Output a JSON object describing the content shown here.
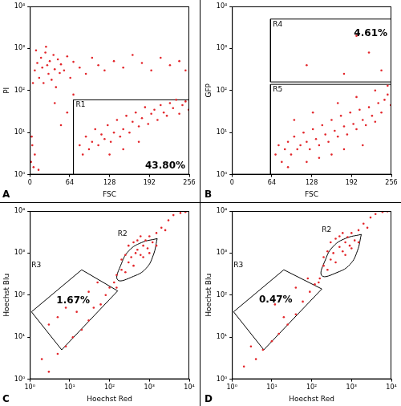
{
  "chart_data": [
    {
      "type": "scatter",
      "panel": "A",
      "x_label": "FSC",
      "y_label": "PI",
      "color": "#e3262b",
      "grid": false,
      "log": "y",
      "xlim": [
        0,
        256
      ],
      "xticks": [
        0,
        64,
        128,
        192,
        256
      ],
      "ylim": [
        1,
        10000
      ],
      "yticks": [
        {
          "value": 1,
          "label": "10⁰"
        },
        {
          "value": 10,
          "label": "10¹"
        },
        {
          "value": 100,
          "label": "10²"
        },
        {
          "value": 1000,
          "label": "10³"
        },
        {
          "value": 10000,
          "label": "10⁴"
        }
      ],
      "x": [
        8,
        12,
        15,
        18,
        20,
        22,
        25,
        28,
        30,
        32,
        35,
        38,
        40,
        42,
        45,
        48,
        50,
        55,
        60,
        65,
        70,
        80,
        90,
        100,
        110,
        120,
        135,
        150,
        165,
        180,
        195,
        210,
        225,
        240,
        250,
        5,
        10,
        26,
        80,
        85,
        90,
        95,
        100,
        105,
        110,
        115,
        120,
        125,
        130,
        135,
        140,
        145,
        150,
        155,
        160,
        165,
        170,
        175,
        180,
        185,
        190,
        195,
        200,
        205,
        210,
        215,
        220,
        225,
        230,
        235,
        240,
        245,
        250,
        255,
        128,
        150,
        175,
        2,
        4,
        6,
        3,
        8,
        14,
        60,
        50,
        70,
        40
      ],
      "values": [
        300,
        450,
        200,
        600,
        350,
        150,
        800,
        400,
        250,
        500,
        180,
        700,
        320,
        120,
        550,
        260,
        420,
        300,
        650,
        200,
        480,
        350,
        250,
        600,
        400,
        300,
        500,
        350,
        700,
        450,
        300,
        600,
        400,
        500,
        300,
        150,
        900,
        1100,
        5,
        3,
        8,
        4,
        6,
        12,
        5,
        9,
        7,
        15,
        6,
        10,
        20,
        8,
        12,
        25,
        10,
        18,
        30,
        14,
        22,
        40,
        16,
        28,
        35,
        20,
        45,
        30,
        25,
        50,
        38,
        60,
        28,
        45,
        55,
        35,
        3,
        4,
        6,
        2,
        5,
        1.5,
        8,
        3,
        1.3,
        30,
        15,
        80,
        50
      ],
      "regions": [
        {
          "name": "R1",
          "shape": "rectangle",
          "x": [
            70,
            256
          ],
          "y": [
            1,
            60
          ],
          "value": 43.8,
          "value_label": "43.80%"
        }
      ]
    },
    {
      "type": "scatter",
      "panel": "B",
      "x_label": "FSC",
      "y_label": "GFP",
      "color": "#e3262b",
      "grid": false,
      "log": "y",
      "xlim": [
        0,
        256
      ],
      "xticks": [
        0,
        64,
        128,
        192,
        256
      ],
      "ylim": [
        1,
        10000
      ],
      "yticks": [
        {
          "value": 1,
          "label": "10⁰"
        },
        {
          "value": 10,
          "label": "10¹"
        },
        {
          "value": 100,
          "label": "10²"
        },
        {
          "value": 1000,
          "label": "10³"
        },
        {
          "value": 10000,
          "label": "10⁴"
        }
      ],
      "x": [
        70,
        75,
        80,
        85,
        90,
        95,
        100,
        105,
        110,
        115,
        120,
        125,
        130,
        135,
        140,
        145,
        150,
        155,
        160,
        165,
        170,
        175,
        180,
        185,
        190,
        195,
        200,
        205,
        210,
        215,
        220,
        225,
        230,
        235,
        240,
        245,
        250,
        255,
        100,
        130,
        170,
        200,
        230,
        250,
        120,
        140,
        90,
        160,
        180,
        210,
        120,
        180,
        220,
        240,
        200
      ],
      "values": [
        3,
        5,
        2,
        4,
        6,
        3,
        8,
        4,
        5,
        10,
        6,
        4,
        12,
        7,
        5,
        15,
        9,
        6,
        20,
        11,
        8,
        25,
        14,
        9,
        30,
        16,
        12,
        35,
        20,
        15,
        40,
        25,
        18,
        50,
        30,
        60,
        80,
        45,
        20,
        30,
        50,
        70,
        100,
        130,
        2,
        2.5,
        1.5,
        3,
        4,
        5,
        400,
        250,
        800,
        300,
        2000
      ],
      "regions": [
        {
          "name": "R4",
          "shape": "rectangle",
          "x": [
            62,
            256
          ],
          "y": [
            160,
            5000
          ],
          "value": 4.61,
          "value_label": "4.61%"
        },
        {
          "name": "R5",
          "shape": "rectangle",
          "x": [
            62,
            256
          ],
          "y": [
            1,
            140
          ]
        }
      ]
    },
    {
      "type": "scatter",
      "panel": "C",
      "x_label": "Hoechst Red",
      "y_label": "Hoechst Blu",
      "color": "#e3262b",
      "grid": false,
      "log": true,
      "xlim": [
        1,
        10000
      ],
      "xticks": [
        {
          "value": 1,
          "label": "10⁰"
        },
        {
          "value": 10,
          "label": "10¹"
        },
        {
          "value": 100,
          "label": "10²"
        },
        {
          "value": 1000,
          "label": "10³"
        },
        {
          "value": 10000,
          "label": "10⁴"
        }
      ],
      "ylim": [
        1,
        10000
      ],
      "yticks": [
        {
          "value": 1,
          "label": "10⁰"
        },
        {
          "value": 10,
          "label": "10¹"
        },
        {
          "value": 100,
          "label": "10²"
        },
        {
          "value": 1000,
          "label": "10³"
        },
        {
          "value": 10000,
          "label": "10⁴"
        }
      ],
      "x": [
        2,
        3,
        5,
        8,
        12,
        20,
        30,
        40,
        60,
        80,
        100,
        130,
        150,
        200,
        250,
        300,
        350,
        400,
        450,
        500,
        600,
        700,
        800,
        900,
        1000,
        1200,
        1500,
        2000,
        2500,
        3000,
        4000,
        6000,
        8000,
        300,
        500,
        700,
        1000,
        400,
        250,
        600,
        1500,
        200,
        150,
        50,
        30,
        5,
        8,
        15,
        3
      ],
      "values": [
        3,
        1.5,
        4,
        6,
        10,
        15,
        25,
        50,
        60,
        100,
        150,
        200,
        300,
        400,
        350,
        600,
        800,
        500,
        1000,
        1200,
        900,
        1500,
        2000,
        1300,
        2500,
        1800,
        3000,
        4000,
        3500,
        6000,
        8000,
        9000,
        9500,
        1500,
        2000,
        800,
        1000,
        1800,
        900,
        2500,
        1500,
        700,
        150,
        200,
        120,
        30,
        50,
        40,
        20
      ],
      "regions": [
        {
          "name": "R2",
          "shape": "ellipse",
          "points": [
            [
              1570,
              2210
            ],
            [
              630,
              1770
            ],
            [
              310,
              1150
            ],
            [
              200,
              570
            ],
            [
              160,
              230
            ],
            [
              400,
              280
            ],
            [
              820,
              430
            ],
            [
              1250,
              890
            ]
          ]
        },
        {
          "name": "R3",
          "shape": "polygon",
          "points": [
            [
              1.1,
              40
            ],
            [
              20,
              400
            ],
            [
              160,
              126
            ],
            [
              6.3,
              5
            ]
          ],
          "value": 1.67,
          "value_label": "1.67%"
        }
      ]
    },
    {
      "type": "scatter",
      "panel": "D",
      "x_label": "Hoechst Red",
      "y_label": "Hoechst Blu",
      "color": "#e3262b",
      "grid": false,
      "log": true,
      "xlim": [
        1,
        10000
      ],
      "xticks": [
        {
          "value": 1,
          "label": "10⁰"
        },
        {
          "value": 10,
          "label": "10¹"
        },
        {
          "value": 100,
          "label": "10²"
        },
        {
          "value": 1000,
          "label": "10³"
        },
        {
          "value": 10000,
          "label": "10⁴"
        }
      ],
      "ylim": [
        1,
        10000
      ],
      "yticks": [
        {
          "value": 1,
          "label": "10⁰"
        },
        {
          "value": 10,
          "label": "10¹"
        },
        {
          "value": 100,
          "label": "10²"
        },
        {
          "value": 1000,
          "label": "10³"
        },
        {
          "value": 10000,
          "label": "10⁴"
        }
      ],
      "x": [
        2,
        4,
        6,
        10,
        15,
        25,
        40,
        60,
        90,
        120,
        160,
        200,
        250,
        300,
        350,
        400,
        500,
        600,
        700,
        800,
        900,
        1000,
        1200,
        1500,
        2000,
        2500,
        3000,
        4000,
        6000,
        8000,
        300,
        500,
        700,
        1000,
        400,
        250,
        600,
        1500,
        200,
        150,
        80,
        40,
        12,
        3,
        20
      ],
      "values": [
        2,
        3,
        5,
        8,
        12,
        20,
        35,
        70,
        120,
        180,
        250,
        500,
        400,
        700,
        1000,
        600,
        1400,
        1100,
        1800,
        2400,
        1500,
        3000,
        2000,
        3500,
        5000,
        4000,
        7000,
        8500,
        9500,
        9800,
        1800,
        2500,
        900,
        1300,
        2200,
        1100,
        3000,
        1800,
        800,
        200,
        250,
        150,
        60,
        6,
        30
      ],
      "regions": [
        {
          "name": "R2",
          "shape": "ellipse",
          "points": [
            [
              1760,
              2780
            ],
            [
              705,
              2230
            ],
            [
              350,
              1450
            ],
            [
              225,
              720
            ],
            [
              180,
              290
            ],
            [
              450,
              350
            ],
            [
              920,
              540
            ],
            [
              1400,
              1120
            ]
          ]
        },
        {
          "name": "R3",
          "shape": "polygon",
          "points": [
            [
              1.1,
              40
            ],
            [
              20,
              400
            ],
            [
              180,
              140
            ],
            [
              6.3,
              5
            ]
          ],
          "value": 0.47,
          "value_label": "0.47%"
        }
      ]
    }
  ]
}
